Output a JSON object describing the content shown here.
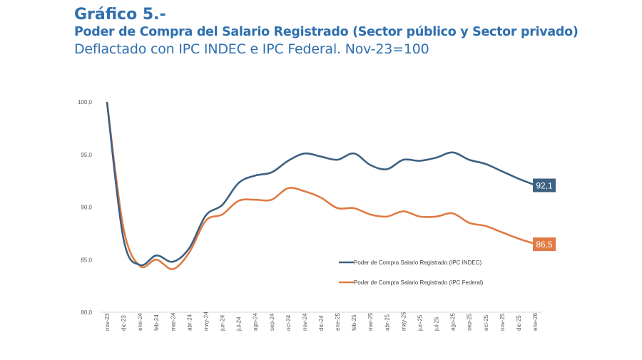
{
  "header": {
    "label": "Gráfico 5.-",
    "title": "Poder de Compra del Salario Registrado (Sector público y Sector privado)",
    "subtitle": "Deflactado con IPC INDEC e IPC Federal. Nov-23=100"
  },
  "chart_data": {
    "type": "line",
    "title": "Poder de Compra del Salario Registrado (Sector público y Sector privado)",
    "categories": [
      "nov-23",
      "dic-23",
      "ene-24",
      "feb-24",
      "mar-24",
      "abr-24",
      "may-24",
      "jun-24",
      "jul-24",
      "ago-24",
      "sep-24",
      "oct-24",
      "nov-24",
      "dic-24",
      "ene-25",
      "feb-25",
      "mar-25",
      "abr-25",
      "may-25",
      "jun-25",
      "jul-25",
      "ago-25",
      "sep-25",
      "oct-25",
      "nov-25",
      "dic-25",
      "ene-26"
    ],
    "ylim": [
      80,
      100
    ],
    "yticks": [
      "80,0",
      "85,0",
      "90,0",
      "95,0",
      "100,0"
    ],
    "grid": false,
    "legend_position": "center-right",
    "series": [
      {
        "name": "Poder de Compra Salario Registrado (IPC INDEC)",
        "color": "#3d6182",
        "end_label": "92,1",
        "values": [
          100,
          87.0,
          84.5,
          85.4,
          84.8,
          86.1,
          89.2,
          90.2,
          92.3,
          93.0,
          93.3,
          94.4,
          95.1,
          94.8,
          94.5,
          95.1,
          94.0,
          93.6,
          94.5,
          94.4,
          94.7,
          95.2,
          94.5,
          94.1,
          93.4,
          92.7,
          92.1
        ]
      },
      {
        "name": "Poder de Compra Salario Registrado (IPC Federal)",
        "color": "#e07b45",
        "end_label": "86,5",
        "values": [
          100,
          88.0,
          84.4,
          85.0,
          84.1,
          85.7,
          88.7,
          89.3,
          90.6,
          90.7,
          90.7,
          91.8,
          91.5,
          90.9,
          89.9,
          89.9,
          89.3,
          89.1,
          89.6,
          89.1,
          89.1,
          89.4,
          88.5,
          88.2,
          87.6,
          87.0,
          86.5
        ]
      }
    ]
  }
}
